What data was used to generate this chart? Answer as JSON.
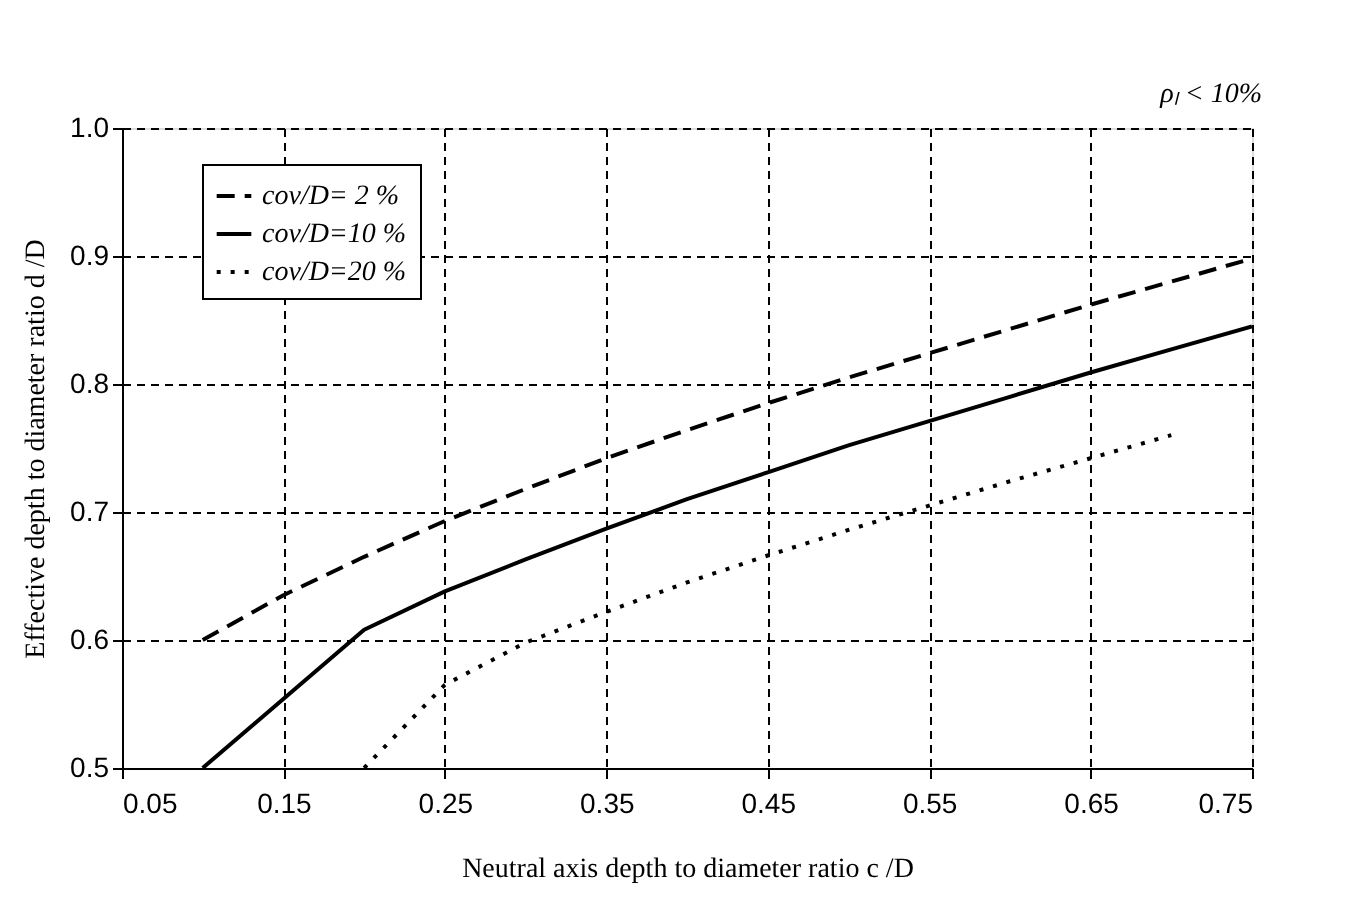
{
  "chart_data": {
    "type": "line",
    "xlabel": "Neutral axis depth to diameter ratio c /D",
    "ylabel": "Effective depth to diameter ratio  d /D",
    "annotations": [
      "ρₗ < 10%"
    ],
    "xlim": [
      0.05,
      0.75
    ],
    "xticks": [
      0.05,
      0.15,
      0.25,
      0.35,
      0.45,
      0.55,
      0.65,
      0.75
    ],
    "ylim": [
      0.5,
      1.0
    ],
    "yticks": [
      {
        "value": 0.5,
        "label": "0.5"
      },
      {
        "value": 0.6,
        "label": "0.6"
      },
      {
        "value": 0.7,
        "label": "0.7"
      },
      {
        "value": 0.8,
        "label": "0.8"
      },
      {
        "value": 0.9,
        "label": "0.9"
      },
      {
        "value": 1.0,
        "label": "1.0"
      }
    ],
    "grid": true,
    "legend": "top left",
    "marker": "none",
    "series": [
      {
        "name": "cov/D= 2 %",
        "color": "#000000",
        "line_style": "dashed",
        "x": [
          0.1,
          0.15,
          0.2,
          0.25,
          0.3,
          0.35,
          0.4,
          0.45,
          0.5,
          0.55,
          0.6,
          0.65,
          0.7,
          0.75
        ],
        "values": [
          0.6,
          0.635,
          0.665,
          0.693,
          0.718,
          0.742,
          0.764,
          0.785,
          0.805,
          0.824,
          0.843,
          0.862,
          0.88,
          0.898
        ]
      },
      {
        "name": "cov/D=10 %",
        "color": "#000000",
        "line_style": "solid",
        "x": [
          0.1,
          0.2,
          0.25,
          0.3,
          0.35,
          0.4,
          0.45,
          0.5,
          0.55,
          0.6,
          0.65,
          0.7,
          0.75
        ],
        "values": [
          0.5,
          0.608,
          0.638,
          0.663,
          0.687,
          0.71,
          0.731,
          0.752,
          0.771,
          0.79,
          0.809,
          0.827,
          0.845
        ]
      },
      {
        "name": "cov/D=20 %",
        "color": "#000000",
        "line_style": "dotted",
        "x": [
          0.2,
          0.25,
          0.3,
          0.35,
          0.4,
          0.45,
          0.5,
          0.55,
          0.6,
          0.65,
          0.7
        ],
        "values": [
          0.5,
          0.565,
          0.598,
          0.622,
          0.645,
          0.666,
          0.686,
          0.705,
          0.724,
          0.742,
          0.76
        ]
      }
    ]
  }
}
